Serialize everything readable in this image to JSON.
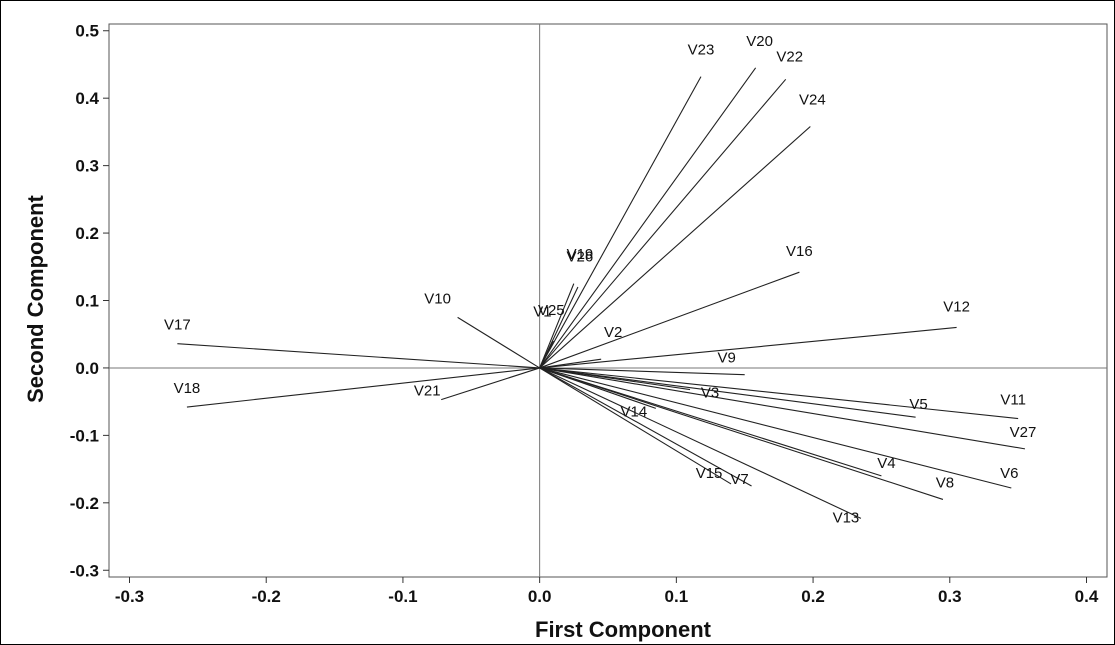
{
  "chart_data": {
    "type": "biplot",
    "xlabel": "First Component",
    "ylabel": "Second Component",
    "xlim": [
      -0.315,
      0.415
    ],
    "ylim": [
      -0.31,
      0.51
    ],
    "x_ticks": [
      -0.3,
      -0.2,
      -0.1,
      0.0,
      0.1,
      0.2,
      0.3,
      0.4
    ],
    "x_tick_labels": [
      "-0.3",
      "-0.2",
      "-0.1",
      "0.0",
      "0.1",
      "0.2",
      "0.3",
      "0.4"
    ],
    "y_ticks": [
      -0.3,
      -0.2,
      -0.1,
      0.0,
      0.1,
      0.2,
      0.3,
      0.4,
      0.5
    ],
    "y_tick_labels": [
      "-0.3",
      "-0.2",
      "-0.1",
      "0.0",
      "0.1",
      "0.2",
      "0.3",
      "0.4",
      "0.5"
    ],
    "reference_lines": {
      "x": 0,
      "y": 0
    },
    "grid": false,
    "vectors": [
      {
        "label": "V1",
        "x": 0.005,
        "y": 0.02
      },
      {
        "label": "V2",
        "x": 0.045,
        "y": 0.013
      },
      {
        "label": "V3",
        "x": 0.11,
        "y": -0.032
      },
      {
        "label": "V4",
        "x": 0.25,
        "y": -0.16
      },
      {
        "label": "V5",
        "x": 0.275,
        "y": -0.073
      },
      {
        "label": "V6",
        "x": 0.345,
        "y": -0.178
      },
      {
        "label": "V7",
        "x": 0.155,
        "y": -0.175
      },
      {
        "label": "V8",
        "x": 0.295,
        "y": -0.195
      },
      {
        "label": "V9",
        "x": 0.15,
        "y": -0.01
      },
      {
        "label": "V10",
        "x": -0.06,
        "y": 0.075
      },
      {
        "label": "V11",
        "x": 0.35,
        "y": -0.075
      },
      {
        "label": "V12",
        "x": 0.305,
        "y": 0.06
      },
      {
        "label": "V13",
        "x": 0.235,
        "y": -0.223
      },
      {
        "label": "V14",
        "x": 0.085,
        "y": -0.06
      },
      {
        "label": "V15",
        "x": 0.14,
        "y": -0.172
      },
      {
        "label": "V16",
        "x": 0.19,
        "y": 0.142
      },
      {
        "label": "V17",
        "x": -0.265,
        "y": 0.036
      },
      {
        "label": "V18",
        "x": -0.258,
        "y": -0.058
      },
      {
        "label": "V19",
        "x": 0.028,
        "y": 0.12
      },
      {
        "label": "V20",
        "x": 0.158,
        "y": 0.445
      },
      {
        "label": "V21",
        "x": -0.072,
        "y": -0.047
      },
      {
        "label": "V22",
        "x": 0.18,
        "y": 0.428
      },
      {
        "label": "V23",
        "x": 0.118,
        "y": 0.432
      },
      {
        "label": "V24",
        "x": 0.198,
        "y": 0.358
      },
      {
        "label": "V25",
        "x": 0.01,
        "y": 0.04
      },
      {
        "label": "V26",
        "x": 0.025,
        "y": 0.125
      },
      {
        "label": "V27",
        "x": 0.355,
        "y": -0.12
      }
    ]
  }
}
